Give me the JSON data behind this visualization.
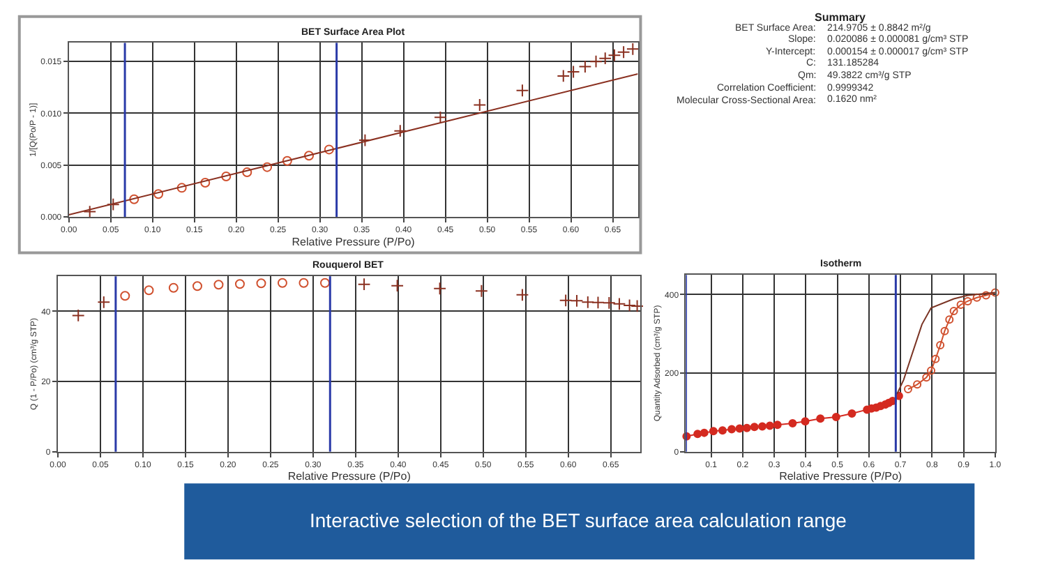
{
  "chart_data": [
    {
      "type": "scatter",
      "title": "BET Surface Area Plot",
      "xlabel": "Relative Pressure (P/Po)",
      "ylabel": "1/[Q(Po/P - 1)]",
      "xlim": [
        0,
        0.68
      ],
      "xticks": [
        {
          "value": 0,
          "label": "0.00"
        },
        0.05,
        {
          "value": 0.1,
          "label": "0.10"
        },
        0.15,
        {
          "value": 0.2,
          "label": "0.20"
        },
        0.25,
        {
          "value": 0.3,
          "label": "0.30"
        },
        0.35,
        {
          "value": 0.4,
          "label": "0.40"
        },
        0.45,
        {
          "value": 0.5,
          "label": "0.50"
        },
        0.55,
        {
          "value": 0.6,
          "label": "0.60"
        },
        0.65
      ],
      "ylim": [
        0,
        0.0168
      ],
      "yticks": [
        {
          "value": 0,
          "label": "0.000"
        },
        0.005,
        {
          "value": 0.01,
          "label": "0.010"
        },
        0.015
      ],
      "grid": true,
      "ref_lines": [
        {
          "axis": "x",
          "value": 0.067,
          "color": "#2a3aa8"
        },
        {
          "axis": "x",
          "value": 0.32,
          "color": "#2a3aa8"
        }
      ],
      "series": [
        {
          "type": "scatter",
          "marker": "cross",
          "color": "#8a3020",
          "x": [
            0.025,
            0.053,
            0.354,
            0.396,
            0.444,
            0.491,
            0.542,
            0.591,
            0.603,
            0.617,
            0.63,
            0.641,
            0.652,
            0.663,
            0.674
          ],
          "values": [
            0.0005,
            0.0012,
            0.0074,
            0.0083,
            0.0096,
            0.0108,
            0.0122,
            0.0136,
            0.014,
            0.0145,
            0.015,
            0.0153,
            0.0156,
            0.0159,
            0.0162
          ]
        },
        {
          "type": "scatter",
          "marker": "circle-open",
          "color": "#d0502e",
          "x": [
            0.078,
            0.107,
            0.135,
            0.163,
            0.188,
            0.213,
            0.237,
            0.261,
            0.287,
            0.311
          ],
          "values": [
            0.0017,
            0.0022,
            0.0028,
            0.0033,
            0.0039,
            0.0043,
            0.0048,
            0.0054,
            0.0059,
            0.0065
          ]
        },
        {
          "type": "line",
          "color": "#8a3020",
          "x": [
            0,
            0.68
          ],
          "values": [
            0.0002,
            0.0138
          ]
        }
      ]
    },
    {
      "type": "other",
      "title": "Summary",
      "annotations": [
        "BET Surface Area: 214.9705 ± 0.8842 m²/g",
        "Slope: 0.020086 ± 0.000081 g/cm³ STP",
        "Y-Intercept: 0.000154 ± 0.000017 g/cm³ STP",
        "C: 131.185284",
        "Qm: 49.3822 cm³/g STP",
        "Correlation Coefficient: 0.9999342",
        "Molecular Cross-Sectional Area: 0.1620 nm²"
      ]
    },
    {
      "type": "scatter",
      "title": "Rouquerol BET",
      "xlabel": "Relative Pressure (P/Po)",
      "ylabel": "Q (1 - P/Po) (cm³/g STP)",
      "xlim": [
        0,
        0.685
      ],
      "xticks": [
        {
          "value": 0,
          "label": "0.00"
        },
        0.05,
        {
          "value": 0.1,
          "label": "0.10"
        },
        0.15,
        {
          "value": 0.2,
          "label": "0.20"
        },
        0.25,
        {
          "value": 0.3,
          "label": "0.30"
        },
        0.35,
        {
          "value": 0.4,
          "label": "0.40"
        },
        0.45,
        {
          "value": 0.5,
          "label": "0.50"
        },
        0.55,
        {
          "value": 0.6,
          "label": "0.60"
        },
        0.65
      ],
      "ylim": [
        0,
        50
      ],
      "yticks": [
        0,
        20,
        40
      ],
      "grid": true,
      "ref_lines": [
        {
          "axis": "x",
          "value": 0.068,
          "color": "#2a3aa8"
        },
        {
          "axis": "x",
          "value": 0.32,
          "color": "#2a3aa8"
        }
      ],
      "series": [
        {
          "type": "scatter",
          "marker": "cross",
          "color": "#8a3020",
          "x": [
            0.024,
            0.054,
            0.36,
            0.399,
            0.449,
            0.498,
            0.546,
            0.597,
            0.61,
            0.623,
            0.635,
            0.648,
            0.66,
            0.672,
            0.681
          ],
          "values": [
            38.8,
            42.6,
            47.7,
            47.3,
            46.5,
            45.8,
            44.7,
            43.1,
            43.0,
            42.6,
            42.5,
            42.4,
            42.1,
            41.7,
            41.5
          ]
        },
        {
          "type": "scatter",
          "marker": "circle-open",
          "color": "#d0502e",
          "x": [
            0.079,
            0.107,
            0.136,
            0.164,
            0.189,
            0.214,
            0.239,
            0.264,
            0.289,
            0.314
          ],
          "values": [
            44.4,
            46.0,
            46.7,
            47.2,
            47.6,
            47.8,
            48.0,
            48.1,
            48.1,
            48.1
          ]
        }
      ]
    },
    {
      "type": "line",
      "title": "Isotherm",
      "xlabel": "Relative Pressure (P/Po)",
      "ylabel": "Quantity Adsorbed (cm³/g STP)",
      "xlim": [
        0.02,
        1.0
      ],
      "xticks": [
        0.1,
        0.2,
        0.3,
        0.4,
        0.5,
        0.6,
        0.7,
        0.8,
        0.9,
        {
          "value": 1.0,
          "label": "1.0"
        }
      ],
      "ylim": [
        0,
        450
      ],
      "yticks": [
        0,
        200,
        400
      ],
      "grid": true,
      "ref_lines": [
        {
          "axis": "x",
          "value": 0.02,
          "color": "#2a3aa8"
        },
        {
          "axis": "x",
          "value": 0.685,
          "color": "#2a3aa8"
        }
      ],
      "annotations": [
        "Interactive selection of the BET surface area calculation range"
      ],
      "series": [
        {
          "type": "line",
          "marker": "circle",
          "color": "#d42a20",
          "x": [
            0.022,
            0.057,
            0.078,
            0.107,
            0.136,
            0.165,
            0.19,
            0.213,
            0.237,
            0.262,
            0.286,
            0.31,
            0.358,
            0.398,
            0.446,
            0.496,
            0.546,
            0.594,
            0.608,
            0.623,
            0.637,
            0.652,
            0.663,
            0.675,
            0.695
          ],
          "values": [
            39,
            45,
            48,
            52,
            54,
            57,
            59,
            60,
            63,
            64,
            66,
            68,
            72,
            77,
            84,
            88,
            97,
            107,
            110,
            112,
            116,
            120,
            124,
            129,
            142
          ]
        },
        {
          "type": "line",
          "marker": "circle-open",
          "color": "#d0502e",
          "x": [
            0.724,
            0.753,
            0.782,
            0.797,
            0.811,
            0.826,
            0.84,
            0.855,
            0.869,
            0.891,
            0.913,
            0.942,
            0.971,
            1.0
          ],
          "values": [
            159,
            171,
            189,
            206,
            236,
            271,
            307,
            336,
            358,
            374,
            383,
            392,
            398,
            405
          ]
        },
        {
          "type": "line",
          "marker": "none",
          "color": "#7a3424",
          "x": [
            1.0,
            0.913,
            0.869,
            0.797,
            0.768,
            0.739,
            0.71,
            0.689
          ],
          "values": [
            405,
            398,
            389,
            366,
            324,
            254,
            183,
            147
          ]
        }
      ]
    }
  ]
}
